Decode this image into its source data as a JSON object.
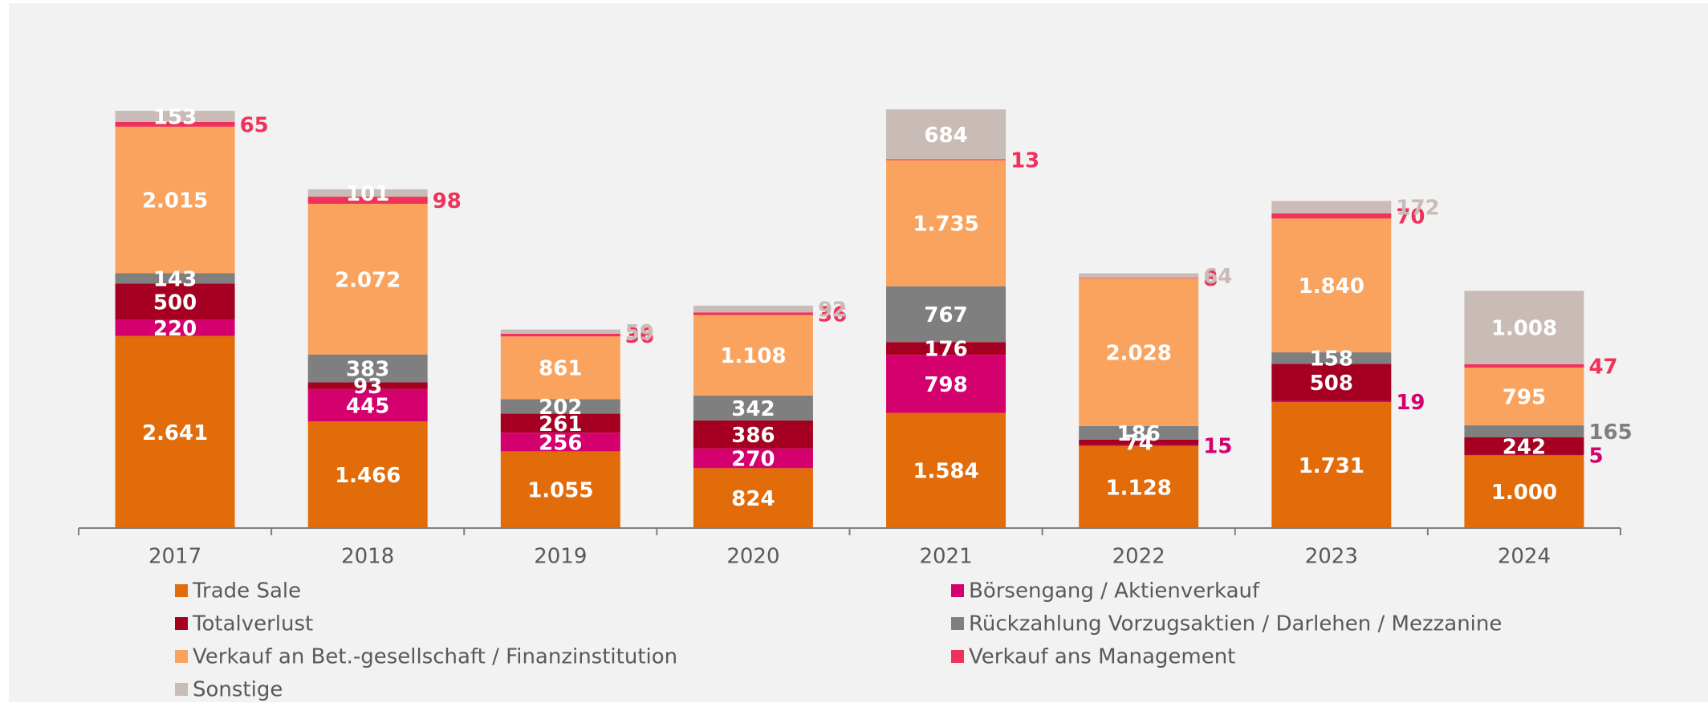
{
  "chart_data": {
    "type": "stacked_bar",
    "categories": [
      "2017",
      "2018",
      "2019",
      "2020",
      "2021",
      "2022",
      "2023",
      "2024"
    ],
    "ylim": [
      0,
      6500
    ],
    "series": [
      {
        "name": "Trade Sale",
        "color": "#e36c0a",
        "values": [
          2641,
          1466,
          1055,
          824,
          1584,
          1128,
          1731,
          1000
        ],
        "value_labels": [
          "2.641",
          "1.466",
          "1.055",
          "824",
          "1.584",
          "1.128",
          "1.731",
          "1.000"
        ]
      },
      {
        "name": "Börsengang / Aktienverkauf",
        "color": "#d4006e",
        "values": [
          220,
          445,
          256,
          270,
          798,
          15,
          19,
          5
        ],
        "value_labels": [
          "220",
          "445",
          "256",
          "270",
          "798",
          "15",
          "19",
          "5"
        ]
      },
      {
        "name": "Totalverlust",
        "color": "#a50021",
        "values": [
          500,
          93,
          261,
          386,
          176,
          74,
          508,
          242
        ],
        "value_labels": [
          "500",
          "93",
          "261",
          "386",
          "176",
          "74",
          "508",
          "242"
        ]
      },
      {
        "name": "Rückzahlung Vorzugsaktien / Darlehen / Mezzanine",
        "color": "#7f7f7f",
        "values": [
          143,
          383,
          202,
          342,
          767,
          186,
          158,
          165
        ],
        "value_labels": [
          "143",
          "383",
          "202",
          "342",
          "767",
          "186",
          "158",
          "165"
        ]
      },
      {
        "name": "Verkauf an Bet.-gesellschaft / Finanzinstitution",
        "color": "#f9a35e",
        "values": [
          2015,
          2072,
          861,
          1108,
          1735,
          2028,
          1840,
          795
        ],
        "value_labels": [
          "2.015",
          "2.072",
          "861",
          "1.108",
          "1.735",
          "2.028",
          "1.840",
          "795"
        ]
      },
      {
        "name": "Verkauf ans Management",
        "color": "#f0325a",
        "values": [
          65,
          98,
          36,
          36,
          13,
          8,
          70,
          47
        ],
        "value_labels": [
          "65",
          "98",
          "36",
          "36",
          "13",
          "8",
          "70",
          "47"
        ]
      },
      {
        "name": "Sonstige",
        "color": "#c9bbb5",
        "values": [
          153,
          101,
          59,
          92,
          684,
          64,
          172,
          1008
        ],
        "value_labels": [
          "153",
          "101",
          "59",
          "92",
          "684",
          "64",
          "172",
          "1.008"
        ]
      }
    ]
  }
}
